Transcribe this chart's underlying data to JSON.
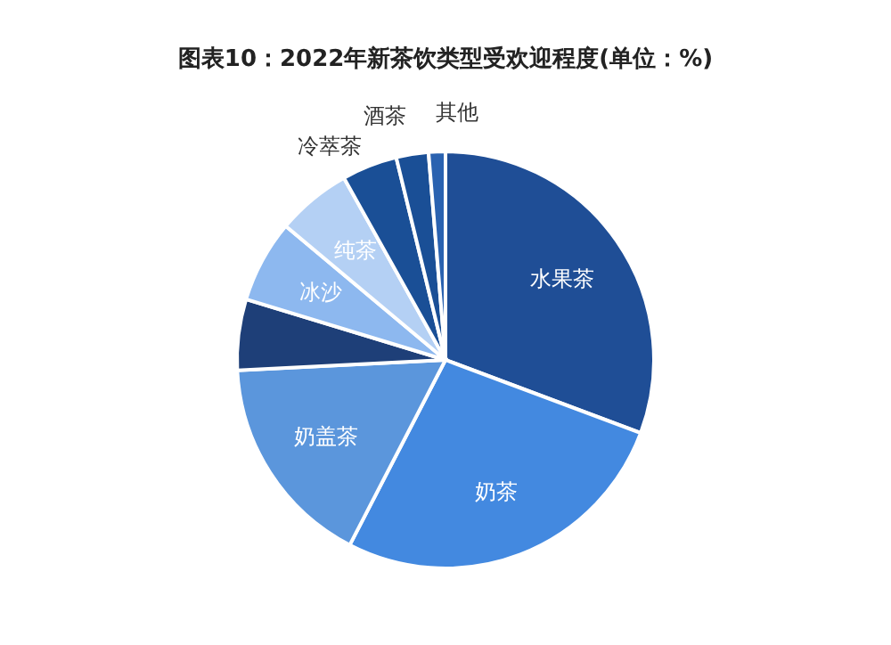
{
  "chart_data": {
    "type": "pie",
    "title": "图表10：2022年新茶饮类型受欢迎程度(单位：%)",
    "categories": [
      "水果茶",
      "奶茶",
      "奶盖茶",
      null,
      "冰沙",
      "纯茶",
      "冷萃茶",
      "酒茶",
      "其他"
    ],
    "values": [
      30.7,
      26.9,
      16.6,
      5.5,
      6.4,
      5.8,
      4.3,
      2.5,
      1.3
    ],
    "colors": [
      "#1f4e96",
      "#4389e0",
      "#5b96dc",
      "#1e3f78",
      "#8db8ef",
      "#b4d0f4",
      "#1a4f96",
      "#1a4f96",
      "#2a62b0"
    ],
    "legend": false
  }
}
